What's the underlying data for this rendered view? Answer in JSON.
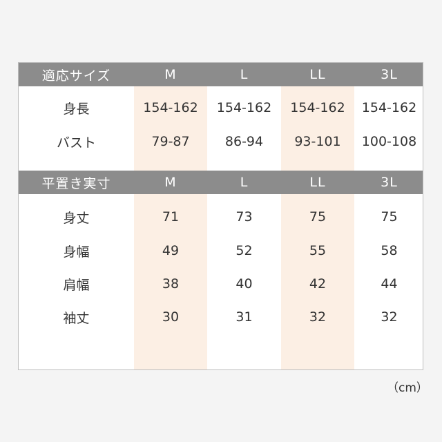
{
  "colors": {
    "header": "#8c8c8c",
    "highlight": "#fcefe4"
  },
  "section1": {
    "headers": [
      "適応サイズ",
      "M",
      "L",
      "LL",
      "3L"
    ],
    "rows": [
      [
        "身長",
        "154-162",
        "154-162",
        "154-162",
        "154-162"
      ],
      [
        "バスト",
        "79-87",
        "86-94",
        "93-101",
        "100-108"
      ]
    ]
  },
  "section2": {
    "headers": [
      "平置き実寸",
      "M",
      "L",
      "LL",
      "3L"
    ],
    "rows": [
      [
        "身丈",
        "71",
        "73",
        "75",
        "75"
      ],
      [
        "身幅",
        "49",
        "52",
        "55",
        "58"
      ],
      [
        "肩幅",
        "38",
        "40",
        "42",
        "44"
      ],
      [
        "袖丈",
        "30",
        "31",
        "32",
        "32"
      ]
    ]
  },
  "unit": "（cm）"
}
